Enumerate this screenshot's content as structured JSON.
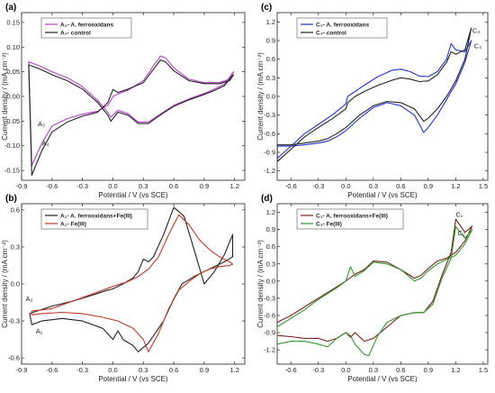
{
  "colors": {
    "black": "#222222",
    "magenta": "#b341c6",
    "blue": "#2233cc",
    "red": "#c0392b",
    "green": "#2e9a2e"
  },
  "chart_data": [
    {
      "type": "line",
      "panel": "(a)",
      "xlabel": "Potential / V (vs SCE)",
      "ylabel": "Current density / (mA cm⁻²)",
      "xlim": [
        -0.9,
        1.3
      ],
      "ylim": [
        -0.17,
        0.17
      ],
      "xticks": [
        -0.9,
        -0.6,
        -0.3,
        0.0,
        0.3,
        0.6,
        0.9,
        1.2
      ],
      "xtick_labels": [
        "-0.9",
        "-0.6",
        "-0.3",
        "0.0",
        "0.3",
        "0.6",
        "0.9",
        "1.2"
      ],
      "yticks": [
        -0.15,
        -0.1,
        -0.05,
        0.0,
        0.05,
        0.1,
        0.15
      ],
      "ytick_labels": [
        "-0.15",
        "-0.10",
        "-0.05",
        "0.00",
        "0.05",
        "0.10",
        "0.15"
      ],
      "legend_position": "top-left",
      "annotations": [
        {
          "text": "A₃",
          "x": -0.74,
          "y": -0.06
        },
        {
          "text": "A₄",
          "x": -0.7,
          "y": -0.1
        }
      ],
      "series": [
        {
          "name": "A₃- A. ferrooxidans",
          "color": "#b341c6",
          "x": [
            -0.8,
            -0.7,
            -0.6,
            -0.45,
            -0.3,
            -0.15,
            -0.05,
            0.0,
            0.05,
            0.15,
            0.3,
            0.4,
            0.47,
            0.52,
            0.6,
            0.75,
            0.9,
            1.05,
            1.15,
            1.19,
            1.17,
            1.1,
            1.0,
            0.9,
            0.75,
            0.6,
            0.45,
            0.35,
            0.25,
            0.15,
            0.05,
            -0.02,
            -0.05,
            -0.15,
            -0.3,
            -0.45,
            -0.6,
            -0.7,
            -0.8,
            -0.83
          ],
          "y": [
            -0.14,
            -0.095,
            -0.06,
            -0.045,
            -0.036,
            -0.03,
            -0.018,
            0.0,
            0.005,
            0.013,
            0.032,
            0.062,
            0.082,
            0.078,
            0.058,
            0.035,
            0.028,
            0.028,
            0.035,
            0.05,
            0.045,
            0.025,
            0.015,
            0.006,
            -0.005,
            -0.018,
            -0.038,
            -0.052,
            -0.052,
            -0.035,
            -0.028,
            -0.042,
            -0.032,
            -0.008,
            0.02,
            0.038,
            0.05,
            0.06,
            0.068,
            0.07
          ]
        },
        {
          "name": "A₄- control",
          "color": "#222222",
          "x": [
            -0.8,
            -0.7,
            -0.6,
            -0.45,
            -0.3,
            -0.15,
            -0.05,
            0.0,
            0.05,
            0.15,
            0.3,
            0.4,
            0.47,
            0.52,
            0.6,
            0.75,
            0.9,
            1.05,
            1.15,
            1.19,
            1.17,
            1.1,
            1.0,
            0.9,
            0.75,
            0.6,
            0.45,
            0.35,
            0.25,
            0.15,
            0.05,
            -0.02,
            -0.05,
            -0.15,
            -0.3,
            -0.45,
            -0.6,
            -0.7,
            -0.8,
            -0.83
          ],
          "y": [
            -0.16,
            -0.11,
            -0.072,
            -0.052,
            -0.04,
            -0.032,
            -0.012,
            0.014,
            0.008,
            0.015,
            0.028,
            0.055,
            0.074,
            0.07,
            0.052,
            0.032,
            0.026,
            0.026,
            0.032,
            0.044,
            0.04,
            0.022,
            0.012,
            0.004,
            -0.007,
            -0.02,
            -0.04,
            -0.055,
            -0.055,
            -0.038,
            -0.032,
            -0.05,
            -0.038,
            -0.012,
            0.015,
            0.032,
            0.044,
            0.054,
            0.062,
            0.064
          ]
        }
      ]
    },
    {
      "type": "line",
      "panel": "(b)",
      "xlabel": "Potential / V (vs SCE)",
      "ylabel": "Current density / (mA cm⁻²)",
      "xlim": [
        -0.9,
        1.3
      ],
      "ylim": [
        -0.65,
        0.65
      ],
      "xticks": [
        -0.9,
        -0.6,
        -0.3,
        0.0,
        0.3,
        0.6,
        0.9,
        1.2
      ],
      "xtick_labels": [
        "-0.9",
        "-0.6",
        "-0.3",
        "0.0",
        "0.3",
        "0.6",
        "0.9",
        "1.2"
      ],
      "yticks": [
        -0.6,
        -0.3,
        0.0,
        0.3,
        0.6
      ],
      "ytick_labels": [
        "-0.6",
        "-0.3",
        "0.0",
        "0.3",
        "0.6"
      ],
      "legend_position": "top-left",
      "annotations": [
        {
          "text": "A₂",
          "x": -0.86,
          "y": -0.14
        },
        {
          "text": "A₁",
          "x": -0.76,
          "y": -0.4
        }
      ],
      "series": [
        {
          "name": "A₁- A. ferrooxidans+Fe(III)",
          "color": "#222222",
          "x": [
            -0.8,
            -0.7,
            -0.5,
            -0.3,
            -0.1,
            0.0,
            0.05,
            0.1,
            0.2,
            0.25,
            0.35,
            0.5,
            0.6,
            0.68,
            0.72,
            0.8,
            0.9,
            1.0,
            1.1,
            1.18,
            1.18,
            1.1,
            1.0,
            0.9,
            0.8,
            0.7,
            0.6,
            0.5,
            0.4,
            0.35,
            0.3,
            0.25,
            0.2,
            0.1,
            0.05,
            0.0,
            -0.05,
            -0.2,
            -0.4,
            -0.6,
            -0.75,
            -0.82
          ],
          "y": [
            -0.33,
            -0.3,
            -0.28,
            -0.3,
            -0.36,
            -0.45,
            -0.38,
            -0.45,
            -0.5,
            -0.55,
            -0.48,
            -0.3,
            -0.12,
            0.0,
            0.02,
            0.06,
            0.1,
            0.14,
            0.18,
            0.22,
            0.4,
            0.24,
            0.1,
            0.0,
            0.28,
            0.55,
            0.62,
            0.4,
            0.22,
            0.18,
            0.2,
            0.1,
            0.05,
            0.0,
            -0.02,
            -0.04,
            -0.05,
            -0.09,
            -0.14,
            -0.18,
            -0.22,
            -0.24
          ]
        },
        {
          "name": "A₂- Fe(III)",
          "color": "#c0392b",
          "x": [
            -0.8,
            -0.7,
            -0.5,
            -0.3,
            -0.1,
            0.05,
            0.2,
            0.3,
            0.35,
            0.45,
            0.55,
            0.65,
            0.75,
            0.85,
            0.95,
            1.05,
            1.15,
            1.18,
            1.15,
            1.05,
            0.95,
            0.85,
            0.75,
            0.65,
            0.55,
            0.45,
            0.35,
            0.25,
            0.15,
            0.0,
            -0.2,
            -0.4,
            -0.6,
            -0.8
          ],
          "y": [
            -0.25,
            -0.24,
            -0.23,
            -0.24,
            -0.27,
            -0.3,
            -0.36,
            -0.45,
            -0.55,
            -0.4,
            -0.2,
            -0.05,
            0.02,
            0.08,
            0.12,
            0.14,
            0.15,
            0.16,
            0.18,
            0.22,
            0.28,
            0.36,
            0.48,
            0.56,
            0.4,
            0.22,
            0.12,
            0.06,
            0.02,
            -0.02,
            -0.08,
            -0.14,
            -0.2,
            -0.22
          ]
        }
      ]
    },
    {
      "type": "line",
      "panel": "(c)",
      "xlabel": "Potential / V (vs SCE)",
      "ylabel": "Current density / (mA cm⁻²)",
      "xlim": [
        -0.75,
        1.55
      ],
      "ylim": [
        -1.35,
        1.35
      ],
      "xticks": [
        -0.6,
        -0.3,
        0.0,
        0.3,
        0.6,
        0.9,
        1.2,
        1.5
      ],
      "xtick_labels": [
        "-0.6",
        "-0.3",
        "0.0",
        "0.3",
        "0.6",
        "0.9",
        "1.2",
        "1.5"
      ],
      "yticks": [
        -1.2,
        -0.9,
        -0.6,
        -0.3,
        0.0,
        0.3,
        0.6,
        0.9,
        1.2
      ],
      "ytick_labels": [
        "-1.2",
        "-0.9",
        "-0.6",
        "-0.3",
        "0.0",
        "0.3",
        "0.6",
        "0.9",
        "1.2"
      ],
      "legend_position": "top-left",
      "annotations": [
        {
          "text": "C₄",
          "x": 1.38,
          "y": 1.02
        },
        {
          "text": "C₃",
          "x": 1.4,
          "y": 0.78
        }
      ],
      "series": [
        {
          "name": "C₃- A. ferrooxidans",
          "color": "#2233cc",
          "x": [
            -0.75,
            -0.6,
            -0.45,
            -0.3,
            -0.15,
            0.0,
            0.02,
            0.1,
            0.2,
            0.35,
            0.5,
            0.6,
            0.7,
            0.8,
            0.9,
            1.0,
            1.1,
            1.15,
            1.2,
            1.3,
            1.37,
            1.3,
            1.2,
            1.1,
            1.0,
            0.9,
            0.85,
            0.75,
            0.6,
            0.45,
            0.3,
            0.15,
            0.0,
            -0.1,
            -0.2,
            -0.3,
            -0.45,
            -0.6,
            -0.75
          ],
          "y": [
            -1.0,
            -0.8,
            -0.6,
            -0.45,
            -0.3,
            -0.12,
            0.0,
            0.08,
            0.18,
            0.32,
            0.42,
            0.44,
            0.4,
            0.33,
            0.32,
            0.4,
            0.6,
            0.85,
            0.75,
            0.72,
            0.9,
            0.55,
            0.2,
            -0.05,
            -0.3,
            -0.5,
            -0.58,
            -0.3,
            -0.15,
            -0.1,
            -0.18,
            -0.35,
            -0.55,
            -0.65,
            -0.72,
            -0.75,
            -0.78,
            -0.8,
            -0.8
          ]
        },
        {
          "name": "C₄- control",
          "color": "#222222",
          "x": [
            -0.75,
            -0.6,
            -0.45,
            -0.3,
            -0.15,
            0.0,
            0.02,
            0.1,
            0.2,
            0.35,
            0.5,
            0.6,
            0.7,
            0.8,
            0.9,
            1.0,
            1.1,
            1.15,
            1.2,
            1.3,
            1.37,
            1.3,
            1.2,
            1.1,
            1.0,
            0.9,
            0.85,
            0.75,
            0.6,
            0.45,
            0.3,
            0.15,
            0.0,
            -0.1,
            -0.2,
            -0.3,
            -0.45,
            -0.6,
            -0.75
          ],
          "y": [
            -1.05,
            -0.85,
            -0.65,
            -0.5,
            -0.36,
            -0.2,
            -0.1,
            0.0,
            0.08,
            0.18,
            0.26,
            0.3,
            0.28,
            0.24,
            0.25,
            0.35,
            0.55,
            0.72,
            0.68,
            0.75,
            1.1,
            0.6,
            0.25,
            0.0,
            -0.2,
            -0.35,
            -0.4,
            -0.2,
            -0.1,
            -0.08,
            -0.15,
            -0.3,
            -0.5,
            -0.6,
            -0.68,
            -0.72,
            -0.75,
            -0.78,
            -0.78
          ]
        }
      ]
    },
    {
      "type": "line",
      "panel": "(d)",
      "xlabel": "Potential / V (vs SCE)",
      "ylabel": "Current density / (mA cm⁻²)",
      "xlim": [
        -0.75,
        1.55
      ],
      "ylim": [
        -1.45,
        1.35
      ],
      "xticks": [
        -0.6,
        -0.3,
        0.0,
        0.3,
        0.6,
        0.9,
        1.2,
        1.5
      ],
      "xtick_labels": [
        "-0.6",
        "-0.3",
        "0.0",
        "0.3",
        "0.6",
        "0.9",
        "1.2",
        "1.5"
      ],
      "yticks": [
        -1.2,
        -0.9,
        -0.6,
        -0.3,
        0.0,
        0.3,
        0.6,
        0.9,
        1.2
      ],
      "ytick_labels": [
        "-1.2",
        "-0.9",
        "-0.6",
        "-0.3",
        "0.0",
        "0.3",
        "0.6",
        "0.9",
        "1.2"
      ],
      "legend_position": "top-left",
      "annotations": [
        {
          "text": "C₁",
          "x": 1.2,
          "y": 1.12
        },
        {
          "text": "C₂",
          "x": 1.22,
          "y": 0.8
        }
      ],
      "series": [
        {
          "name": "C₁- A. ferrooxidans+Fe(III)",
          "color": "#7a2020",
          "x": [
            -0.75,
            -0.6,
            -0.45,
            -0.3,
            -0.2,
            -0.1,
            0.0,
            0.05,
            0.1,
            0.2,
            0.3,
            0.45,
            0.6,
            0.75,
            0.85,
            0.95,
            1.05,
            1.15,
            1.2,
            1.3,
            1.38,
            1.3,
            1.2,
            1.1,
            1.0,
            0.9,
            0.82,
            0.75,
            0.6,
            0.45,
            0.3,
            0.2,
            0.1,
            0.0,
            -0.1,
            -0.3,
            -0.45,
            -0.6,
            -0.75
          ],
          "y": [
            -0.95,
            -0.97,
            -1.0,
            -1.0,
            -1.05,
            -1.0,
            -0.9,
            -0.98,
            -0.9,
            -1.05,
            -1.0,
            -0.8,
            -0.6,
            -0.55,
            -0.55,
            -0.35,
            0.1,
            0.5,
            1.08,
            0.85,
            0.96,
            0.7,
            0.5,
            0.4,
            0.35,
            0.22,
            0.1,
            0.05,
            0.2,
            0.33,
            0.35,
            0.2,
            0.12,
            0.0,
            -0.1,
            -0.3,
            -0.45,
            -0.6,
            -0.72
          ]
        },
        {
          "name": "C₂- Fe(III)",
          "color": "#2e9a2e",
          "x": [
            -0.75,
            -0.6,
            -0.45,
            -0.3,
            -0.2,
            -0.1,
            0.0,
            0.05,
            0.1,
            0.2,
            0.25,
            0.35,
            0.45,
            0.6,
            0.75,
            0.85,
            0.95,
            1.05,
            1.15,
            1.2,
            1.3,
            1.38,
            1.3,
            1.2,
            1.1,
            1.0,
            0.9,
            0.82,
            0.75,
            0.6,
            0.45,
            0.3,
            0.2,
            0.1,
            0.05,
            0.0,
            -0.1,
            -0.3,
            -0.45,
            -0.6,
            -0.75
          ],
          "y": [
            -1.1,
            -1.05,
            -1.05,
            -1.1,
            -1.15,
            -1.0,
            -0.9,
            -0.95,
            -1.1,
            -1.28,
            -1.3,
            -0.95,
            -0.72,
            -0.6,
            -0.55,
            -0.55,
            -0.4,
            0.05,
            0.4,
            0.95,
            0.75,
            0.9,
            0.65,
            0.45,
            0.38,
            0.3,
            0.18,
            0.05,
            0.0,
            0.2,
            0.3,
            0.33,
            0.18,
            0.08,
            0.25,
            0.0,
            -0.12,
            -0.32,
            -0.5,
            -0.65,
            -0.8
          ]
        }
      ]
    }
  ]
}
